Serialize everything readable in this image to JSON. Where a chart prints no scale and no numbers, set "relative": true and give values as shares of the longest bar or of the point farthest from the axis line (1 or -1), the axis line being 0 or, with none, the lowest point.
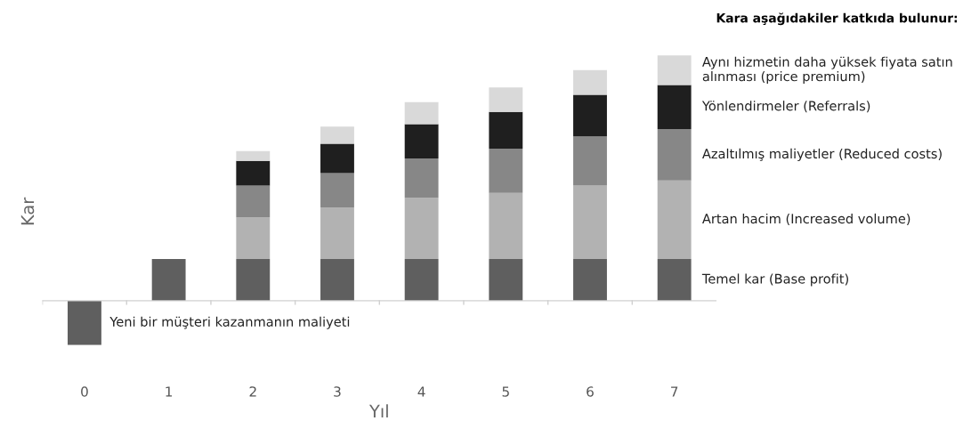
{
  "chart_data": {
    "type": "bar",
    "stacked": true,
    "relative": true,
    "legend": false,
    "grid": false,
    "xlabel": "Yıl",
    "ylabel": "Kar",
    "legend_title": "Kara aşağıdakiler katkıda bulunur:",
    "categories": [
      "0",
      "1",
      "2",
      "3",
      "4",
      "5",
      "6",
      "7"
    ],
    "series": [
      {
        "name": "Temel kar (Base profit)",
        "color": "#5f5f5f",
        "values": [
          -0.18,
          0.17,
          0.17,
          0.17,
          0.17,
          0.17,
          0.17,
          0.17
        ]
      },
      {
        "name": "Artan hacim (Increased volume)",
        "color": "#b2b2b2",
        "values": [
          null,
          null,
          0.17,
          0.21,
          0.25,
          0.27,
          0.3,
          0.32
        ]
      },
      {
        "name": "Azaltılmış maliyetler (Reduced costs)",
        "color": "#878787",
        "values": [
          null,
          null,
          0.13,
          0.14,
          0.16,
          0.18,
          0.2,
          0.21
        ]
      },
      {
        "name": "Yönlendirmeler (Referrals)",
        "color": "#1f1f1f",
        "values": [
          null,
          null,
          0.1,
          0.12,
          0.14,
          0.15,
          0.17,
          0.18
        ]
      },
      {
        "name": "Aynı hizmetin daha yüksek fiyata satın alınması (price premium)",
        "color": "#d9d9d9",
        "values": [
          null,
          null,
          0.04,
          0.07,
          0.09,
          0.1,
          0.1,
          0.12
        ]
      }
    ],
    "annotations": [
      "Yeni bir müşteri kazanmanın maliyeti"
    ]
  }
}
